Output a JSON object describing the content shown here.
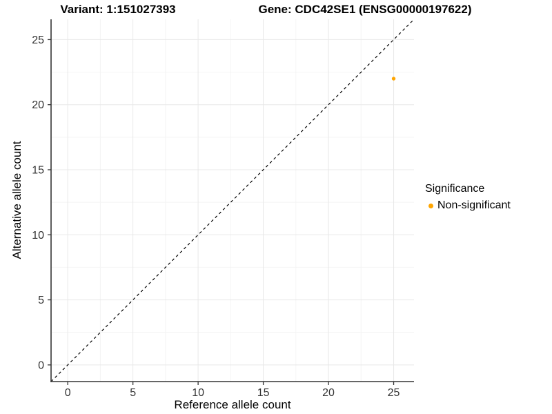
{
  "header": {
    "variant_title": "Variant: 1:151027393",
    "gene_title": "Gene: CDC42SE1 (ENSG00000197622)"
  },
  "chart_data": {
    "type": "scatter",
    "xlabel": "Reference allele count",
    "ylabel": "Alternative allele count",
    "xlim": [
      -1.28,
      26.56
    ],
    "ylim": [
      -1.28,
      26.56
    ],
    "xticks": [
      0,
      5,
      10,
      15,
      20,
      25
    ],
    "yticks": [
      0,
      5,
      10,
      15,
      20,
      25
    ],
    "minor_xticks": [
      2.5,
      7.5,
      12.5,
      17.5,
      22.5
    ],
    "minor_yticks": [
      2.5,
      7.5,
      12.5,
      17.5,
      22.5
    ],
    "grid": true,
    "identity_line": {
      "style": "dashed",
      "equation": "y = x",
      "color": "#000000"
    },
    "series": [
      {
        "name": "Non-significant",
        "color": "#FFA500",
        "points": [
          {
            "x": 25,
            "y": 22
          }
        ]
      }
    ],
    "legend": {
      "title": "Significance",
      "position": "right",
      "items": [
        {
          "label": "Non-significant",
          "color": "#FFA500"
        }
      ]
    }
  },
  "colors": {
    "background": "#FFFFFF",
    "grid_major": "#E8E8E8",
    "grid_minor": "#F4F4F4",
    "axis_line": "#333333",
    "tick_label": "#333333",
    "point": "#FFA500"
  }
}
